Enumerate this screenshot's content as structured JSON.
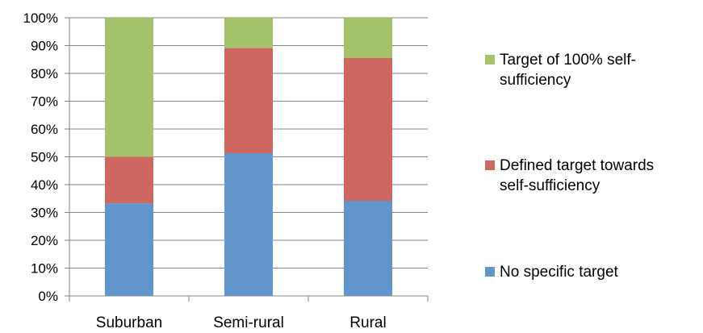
{
  "chart_data": {
    "type": "bar",
    "stacked": true,
    "percent_stacked": true,
    "categories": [
      "Suburban",
      "Semi-rural",
      "Rural"
    ],
    "series": [
      {
        "name": "No specific target",
        "values": [
          33.3,
          51.3,
          34.2
        ],
        "color": "#6195CC"
      },
      {
        "name": "Defined target towards self-sufficiency",
        "values": [
          16.7,
          37.8,
          51.4
        ],
        "color": "#CE6661"
      },
      {
        "name": "Target of 100% self-sufficiency",
        "values": [
          50.0,
          10.9,
          14.4
        ],
        "color": "#A3C26A"
      }
    ],
    "y_ticks": [
      "0%",
      "10%",
      "20%",
      "30%",
      "40%",
      "50%",
      "60%",
      "70%",
      "80%",
      "90%",
      "100%"
    ],
    "ylim": [
      0,
      100
    ],
    "grid": true,
    "legend_position": "right",
    "legend_entries": [
      {
        "lines": [
          "Target of 100% self-",
          "sufficiency"
        ],
        "color": "#A3C26A"
      },
      {
        "lines": [
          "Defined target towards",
          "self-sufficiency"
        ],
        "color": "#CE6661"
      },
      {
        "lines": [
          "No specific target"
        ],
        "color": "#6195CC"
      }
    ]
  }
}
